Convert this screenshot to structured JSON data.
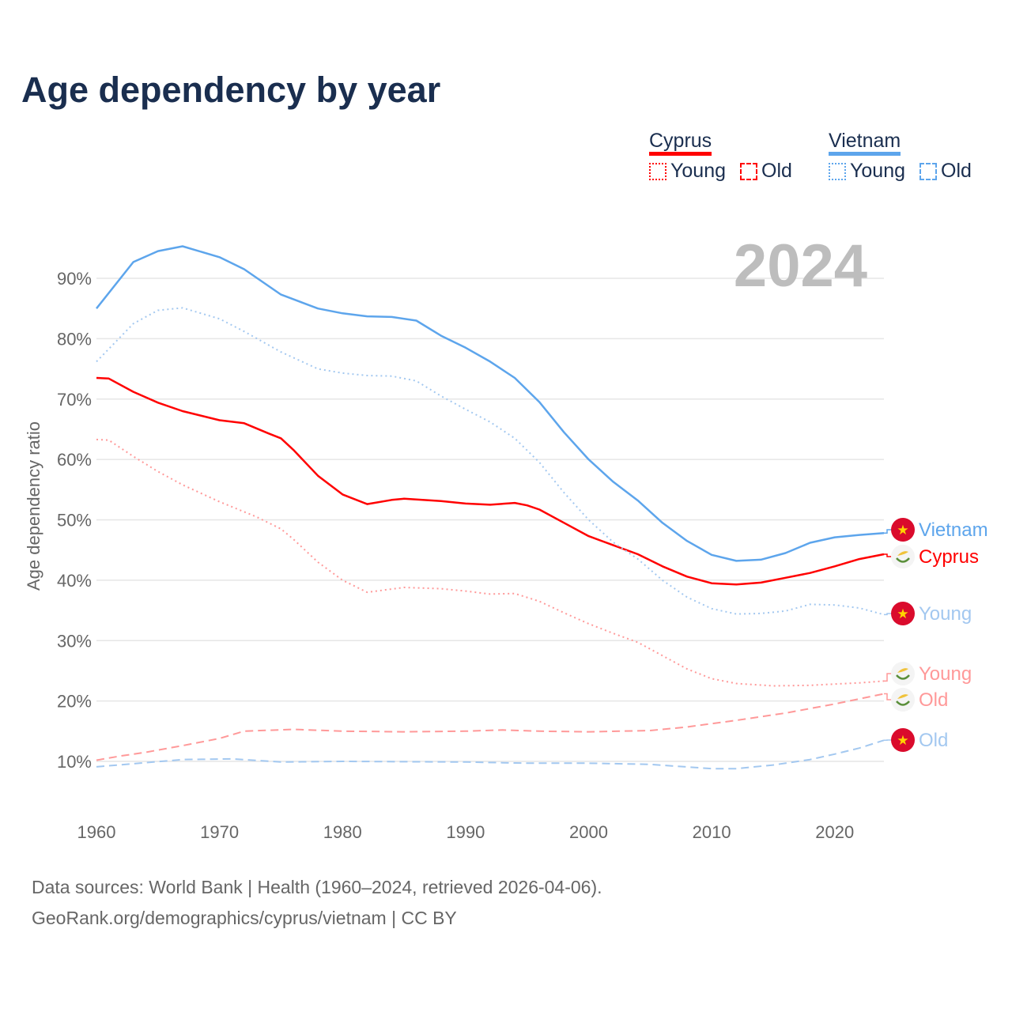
{
  "title": "Age dependency by year",
  "legend": {
    "countries": [
      {
        "name": "Cyprus",
        "color": "#ff0000",
        "items": [
          "Young",
          "Old"
        ]
      },
      {
        "name": "Vietnam",
        "color": "#5da5ec",
        "items": [
          "Young",
          "Old"
        ]
      }
    ]
  },
  "year_badge": "2024",
  "footer": {
    "line1": "Data sources: World Bank | Health (1960–2024, retrieved 2026-04-06).",
    "line2": "GeoRank.org/demographics/cyprus/vietnam | CC BY"
  },
  "chart_data": {
    "type": "line",
    "title": "Age dependency by year",
    "xlabel": "",
    "ylabel": "Age dependency ratio",
    "xlim": [
      1960,
      2024
    ],
    "ylim": [
      0,
      100
    ],
    "x_ticks": [
      "1960",
      "1970",
      "1980",
      "1990",
      "2000",
      "2010",
      "2020"
    ],
    "y_ticks": [
      "10%",
      "20%",
      "30%",
      "40%",
      "50%",
      "60%",
      "70%",
      "80%",
      "90%"
    ],
    "grid": true,
    "series": [
      {
        "name": "Vietnam",
        "label": "Vietnam",
        "flag": "vietnam",
        "color": "#5da5ec",
        "style": "solid",
        "x": [
          1960,
          1963,
          1965,
          1967,
          1970,
          1972,
          1975,
          1978,
          1980,
          1982,
          1984,
          1986,
          1988,
          1990,
          1992,
          1994,
          1996,
          1998,
          2000,
          2002,
          2004,
          2006,
          2008,
          2010,
          2012,
          2014,
          2016,
          2018,
          2020,
          2022,
          2024
        ],
        "y": [
          85,
          92.7,
          94.5,
          95.3,
          93.5,
          91.5,
          87.3,
          85,
          84.2,
          83.7,
          83.6,
          83,
          80.5,
          78.5,
          76.2,
          73.5,
          69.5,
          64.5,
          60,
          56.3,
          53.2,
          49.5,
          46.5,
          44.2,
          43.2,
          43.4,
          44.5,
          46.2,
          47.1,
          47.5,
          47.8
        ]
      },
      {
        "name": "Cyprus",
        "label": "Cyprus",
        "flag": "cyprus",
        "color": "#ff0000",
        "style": "solid",
        "x": [
          1960,
          1961,
          1963,
          1965,
          1967,
          1970,
          1972,
          1974,
          1975,
          1976,
          1978,
          1980,
          1982,
          1984,
          1985,
          1988,
          1990,
          1992,
          1994,
          1995,
          1996,
          1998,
          2000,
          2002,
          2004,
          2006,
          2008,
          2010,
          2012,
          2014,
          2016,
          2018,
          2020,
          2022,
          2024
        ],
        "y": [
          73.5,
          73.4,
          71.2,
          69.4,
          68,
          66.5,
          66,
          64.3,
          63.5,
          61.6,
          57.3,
          54.2,
          52.6,
          53.3,
          53.5,
          53.1,
          52.7,
          52.5,
          52.8,
          52.4,
          51.7,
          49.5,
          47.3,
          45.8,
          44.3,
          42.3,
          40.6,
          39.5,
          39.3,
          39.6,
          40.4,
          41.2,
          42.3,
          43.5,
          44.3
        ]
      },
      {
        "name": "Vietnam Young",
        "label": "Young",
        "flag": "vietnam",
        "color": "#a3c8f0",
        "style": "dotted",
        "x": [
          1960,
          1963,
          1965,
          1967,
          1970,
          1972,
          1975,
          1978,
          1980,
          1982,
          1984,
          1986,
          1988,
          1990,
          1992,
          1994,
          1996,
          1998,
          2000,
          2002,
          2004,
          2006,
          2008,
          2010,
          2012,
          2014,
          2016,
          2018,
          2020,
          2022,
          2024
        ],
        "y": [
          76.2,
          82.5,
          84.7,
          85.1,
          83.3,
          81.2,
          77.8,
          75,
          74.3,
          73.9,
          73.8,
          73,
          70.5,
          68.3,
          66.2,
          63.5,
          59.5,
          54.5,
          50,
          46.3,
          43.5,
          40,
          37.2,
          35.3,
          34.4,
          34.5,
          34.9,
          36,
          35.9,
          35.4,
          34.3
        ]
      },
      {
        "name": "Cyprus Young",
        "label": "Young",
        "flag": "cyprus",
        "color": "#ff9999",
        "style": "dotted",
        "x": [
          1960,
          1961,
          1963,
          1965,
          1967,
          1970,
          1973,
          1975,
          1976,
          1978,
          1980,
          1982,
          1985,
          1988,
          1990,
          1992,
          1994,
          1996,
          1998,
          2000,
          2002,
          2004,
          2006,
          2008,
          2010,
          2012,
          2015,
          2018,
          2020,
          2022,
          2024
        ],
        "y": [
          63.3,
          63.2,
          60.5,
          58,
          55.8,
          53,
          50.5,
          48.5,
          46.8,
          43,
          40,
          38,
          38.8,
          38.6,
          38.2,
          37.7,
          37.8,
          36.5,
          34.6,
          32.8,
          31.2,
          29.7,
          27.5,
          25.3,
          23.7,
          22.9,
          22.5,
          22.6,
          22.8,
          23,
          23.3
        ]
      },
      {
        "name": "Cyprus Old",
        "label": "Old",
        "flag": "cyprus",
        "color": "#ff9999",
        "style": "dashed",
        "x": [
          1960,
          1962,
          1964,
          1967,
          1970,
          1972,
          1976,
          1980,
          1985,
          1990,
          1993,
          1996,
          2000,
          2005,
          2008,
          2012,
          2016,
          2020,
          2024
        ],
        "y": [
          10.2,
          10.9,
          11.5,
          12.6,
          13.8,
          15,
          15.3,
          15,
          14.9,
          15,
          15.2,
          15,
          14.9,
          15.1,
          15.7,
          16.8,
          18,
          19.5,
          21.2
        ]
      },
      {
        "name": "Vietnam Old",
        "label": "Old",
        "flag": "vietnam",
        "color": "#a3c8f0",
        "style": "dashed",
        "x": [
          1960,
          1967,
          1971,
          1975,
          1980,
          1990,
          1995,
          2000,
          2005,
          2010,
          2012,
          2015,
          2018,
          2020,
          2022,
          2024
        ],
        "y": [
          9.1,
          10.3,
          10.4,
          9.9,
          10,
          9.9,
          9.7,
          9.7,
          9.5,
          8.8,
          8.8,
          9.4,
          10.3,
          11.2,
          12.2,
          13.5
        ]
      }
    ]
  }
}
